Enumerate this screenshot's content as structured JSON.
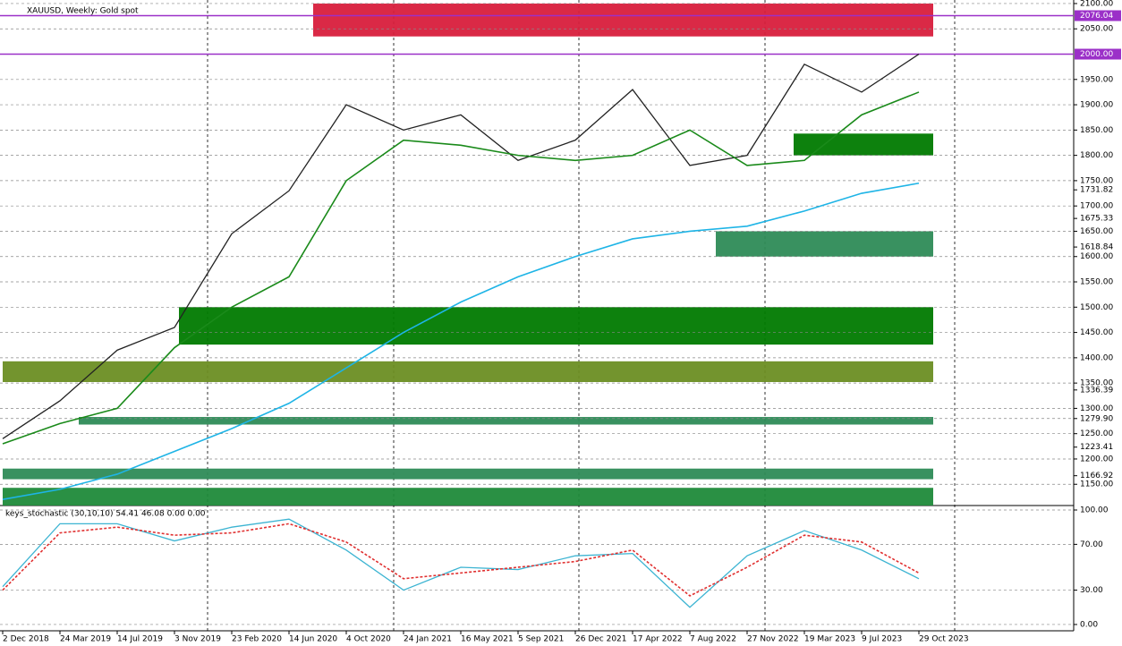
{
  "chart_data": [
    {
      "type": "line",
      "title": "XAUUSD, Weekly:  Gold spot",
      "ylim": [
        1108,
        2107
      ],
      "yticks": [
        {
          "value": 2100,
          "label": "2100.00"
        },
        {
          "value": 2050,
          "label": "2050.00"
        },
        {
          "value": 1950,
          "label": "1950.00"
        },
        {
          "value": 1900,
          "label": "1900.00"
        },
        {
          "value": 1850,
          "label": "1850.00"
        },
        {
          "value": 1800,
          "label": "1800.00"
        },
        {
          "value": 1750,
          "label": "1750.00"
        },
        1731.82,
        {
          "value": 1700,
          "label": "1700.00"
        },
        1675.33,
        {
          "value": 1650,
          "label": "1650.00"
        },
        1618.84,
        {
          "value": 1600,
          "label": "1600.00"
        },
        {
          "value": 1550,
          "label": "1550.00"
        },
        {
          "value": 1500,
          "label": "1500.00"
        },
        {
          "value": 1450,
          "label": "1450.00"
        },
        {
          "value": 1400,
          "label": "1400.00"
        },
        {
          "value": 1350,
          "label": "1350.00"
        },
        1336.39,
        {
          "value": 1300,
          "label": "1300.00"
        },
        {
          "value": 1279.9,
          "label": "1279.90"
        },
        {
          "value": 1250,
          "label": "1250.00"
        },
        1223.41,
        {
          "value": 1200,
          "label": "1200.00"
        },
        1166.92,
        {
          "value": 1150,
          "label": "1150.00"
        }
      ],
      "hlines": [
        {
          "value": 2076.04,
          "label": "2076.04"
        },
        {
          "value": 2000,
          "label": "2000.00"
        }
      ],
      "hline_color": "#9b30c8",
      "zones": [
        {
          "from": 2035,
          "to": 2100,
          "color": "#d81e3c"
        },
        {
          "from": 1426,
          "to": 1500,
          "color": "#007a00"
        },
        {
          "from": 1352,
          "to": 1393,
          "color": "#6b8e23"
        },
        {
          "from": 1268,
          "to": 1283,
          "color": "#2e8b57"
        },
        {
          "from": 1800,
          "to": 1843,
          "color": "#007a00"
        },
        {
          "from": 1600,
          "to": 1650,
          "color": "#2e8b57"
        },
        {
          "from": 1160,
          "to": 1181,
          "color": "#2e8b57"
        },
        {
          "from": 1108,
          "to": 1143,
          "color": "#1f8a3a"
        }
      ],
      "series": [
        {
          "color": "#222222",
          "values": [
            1240,
            1315,
            1415,
            1460,
            1645,
            1730,
            1900,
            1850,
            1880,
            1790,
            1830,
            1930,
            1780,
            1800,
            1980,
            1925,
            2000
          ]
        },
        {
          "color": "#1a8a1a",
          "values": [
            1230,
            1270,
            1300,
            1420,
            1500,
            1560,
            1750,
            1830,
            1820,
            1800,
            1790,
            1800,
            1850,
            1780,
            1790,
            1880,
            1925
          ]
        },
        {
          "color": "#1eb4e6",
          "values": [
            1120,
            1140,
            1170,
            1215,
            1260,
            1310,
            1380,
            1450,
            1510,
            1560,
            1600,
            1635,
            1650,
            1660,
            1690,
            1725,
            1745
          ]
        }
      ]
    },
    {
      "type": "line",
      "title": "keys_stochastic (30,10,10) 54.41 46.08 0.00 0.00",
      "ylim": [
        -5.5,
        103.9
      ],
      "yticks": [
        {
          "value": 100,
          "label": "100.00"
        },
        {
          "value": 70,
          "label": "70.00"
        },
        {
          "value": 30,
          "label": "30.00"
        },
        {
          "value": 0,
          "label": "0.00"
        }
      ],
      "categories": [
        "2 Dec 2018",
        "24 Mar 2019",
        "14 Jul 2019",
        "3 Nov 2019",
        "23 Feb 2020",
        "14 Jun 2020",
        "4 Oct 2020",
        "24 Jan 2021",
        "16 May 2021",
        "5 Sep 2021",
        "26 Dec 2021",
        "17 Apr 2022",
        "7 Aug 2022",
        "27 Nov 2022",
        "19 Mar 2023",
        "9 Jul 2023",
        "29 Oct 2023"
      ],
      "series": [
        {
          "color": "#3cb4d2",
          "values": [
            33,
            88,
            88,
            73,
            85,
            92,
            65,
            30,
            50,
            48,
            60,
            62,
            15,
            60,
            82,
            65,
            40
          ]
        },
        {
          "color": "#e03030",
          "dashed": true,
          "values": [
            30,
            80,
            85,
            78,
            80,
            88,
            72,
            40,
            45,
            50,
            55,
            65,
            25,
            50,
            78,
            72,
            45
          ]
        }
      ]
    }
  ]
}
